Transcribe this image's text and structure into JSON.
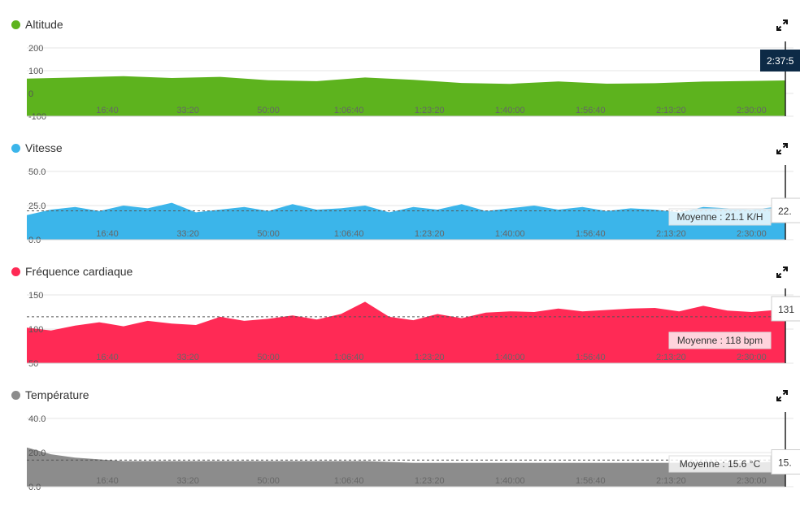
{
  "x_ticks": [
    "16:40",
    "33:20",
    "50:00",
    "1:06:40",
    "1:23:20",
    "1:40:00",
    "1:56:40",
    "2:13:20",
    "2:30:00"
  ],
  "cursor_time": "2:37:5",
  "chart_data": [
    {
      "type": "area",
      "title": "Altitude",
      "color": "#5db31e",
      "y_ticks": [
        "200",
        "100",
        "0",
        "-100"
      ],
      "ylim": [
        -100,
        200
      ],
      "x": [
        0,
        600,
        1200,
        1800,
        2400,
        3000,
        3600,
        4200,
        4800,
        5400,
        6000,
        6600,
        7200,
        7800,
        8400,
        9000,
        9420
      ],
      "values": [
        65,
        70,
        76,
        68,
        73,
        58,
        54,
        70,
        60,
        46,
        42,
        53,
        43,
        45,
        52,
        55,
        57
      ],
      "cursor_value": "",
      "average_label": ""
    },
    {
      "type": "area",
      "title": "Vitesse",
      "color": "#3bb5ea",
      "y_ticks": [
        "50.0",
        "25.0",
        "0.0"
      ],
      "ylim": [
        0,
        50
      ],
      "x": [
        0,
        300,
        600,
        900,
        1200,
        1500,
        1800,
        2100,
        2400,
        2700,
        3000,
        3300,
        3600,
        3900,
        4200,
        4500,
        4800,
        5100,
        5400,
        5700,
        6000,
        6300,
        6600,
        6900,
        7200,
        7500,
        7800,
        8100,
        8400,
        8700,
        9000,
        9300,
        9420
      ],
      "values": [
        18,
        22,
        24,
        21,
        25,
        23,
        27,
        20,
        22,
        24,
        21,
        26,
        22,
        23,
        25,
        20,
        24,
        22,
        26,
        21,
        23,
        25,
        22,
        24,
        21,
        23,
        22,
        20,
        24,
        23,
        22,
        24,
        22
      ],
      "cursor_value": "22.",
      "average_label": "Moyenne : 21.1 K/H",
      "average": 21.1
    },
    {
      "type": "area",
      "title": "Fréquence cardiaque",
      "color": "#ff2a55",
      "y_ticks": [
        "150",
        "100",
        "50"
      ],
      "ylim": [
        50,
        150
      ],
      "x": [
        0,
        300,
        600,
        900,
        1200,
        1500,
        1800,
        2100,
        2400,
        2700,
        3000,
        3300,
        3600,
        3900,
        4200,
        4500,
        4800,
        5100,
        5400,
        5700,
        6000,
        6300,
        6600,
        6900,
        7200,
        7500,
        7800,
        8100,
        8400,
        8700,
        9000,
        9300,
        9420
      ],
      "values": [
        102,
        98,
        105,
        110,
        104,
        112,
        108,
        106,
        118,
        112,
        115,
        120,
        114,
        122,
        140,
        118,
        113,
        122,
        116,
        124,
        126,
        125,
        130,
        126,
        128,
        130,
        131,
        126,
        134,
        127,
        125,
        128,
        131
      ],
      "cursor_value": "131",
      "average_label": "Moyenne : 118 bpm",
      "average": 118
    },
    {
      "type": "area",
      "title": "Température",
      "color": "#8c8c8c",
      "y_ticks": [
        "40.0",
        "20.0",
        "0.0"
      ],
      "ylim": [
        0,
        40
      ],
      "x": [
        0,
        150,
        300,
        600,
        900,
        1200,
        1800,
        2400,
        3000,
        3600,
        4200,
        4800,
        5400,
        6000,
        6600,
        7200,
        7800,
        8400,
        9000,
        9420
      ],
      "values": [
        23,
        21,
        19,
        17,
        16,
        15,
        15,
        15,
        15,
        15,
        15,
        14,
        14,
        14,
        14,
        14,
        14,
        14,
        14,
        15
      ],
      "cursor_value": "15.",
      "average_label": "Moyenne : 15.6 °C",
      "average": 15.6
    }
  ]
}
